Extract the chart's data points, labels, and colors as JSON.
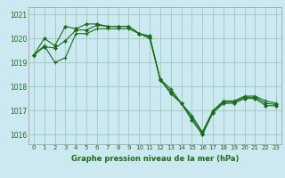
{
  "title": "Graphe pression niveau de la mer (hPa)",
  "bg_color": "#cce8f0",
  "grid_color": "#99ccbb",
  "line_color": "#1a6b1a",
  "x_values": [
    0,
    1,
    2,
    3,
    4,
    5,
    6,
    7,
    8,
    9,
    10,
    11,
    12,
    13,
    14,
    15,
    16,
    17,
    18,
    19,
    20,
    21,
    22,
    23
  ],
  "line1": [
    1019.3,
    1020.0,
    1019.7,
    1020.5,
    1020.4,
    1020.6,
    1020.6,
    1020.5,
    1020.5,
    1020.5,
    1020.2,
    1020.1,
    1018.3,
    1017.7,
    1017.3,
    1016.6,
    1016.0,
    1016.9,
    1017.3,
    1017.3,
    1017.5,
    1017.5,
    1017.2,
    1017.2
  ],
  "line2": [
    1019.3,
    1019.65,
    1019.6,
    1019.9,
    1020.35,
    1020.35,
    1020.55,
    1020.5,
    1020.5,
    1020.5,
    1020.2,
    1020.05,
    1018.25,
    1017.8,
    1017.3,
    1016.7,
    1016.05,
    1016.95,
    1017.35,
    1017.35,
    1017.55,
    1017.55,
    1017.3,
    1017.25
  ],
  "line3": [
    1019.3,
    1019.7,
    1019.0,
    1019.2,
    1020.2,
    1020.2,
    1020.4,
    1020.4,
    1020.4,
    1020.4,
    1020.2,
    1020.0,
    1018.3,
    1017.9,
    1017.3,
    1016.8,
    1016.1,
    1017.0,
    1017.4,
    1017.4,
    1017.6,
    1017.6,
    1017.4,
    1017.3
  ],
  "ylim": [
    1015.6,
    1021.3
  ],
  "yticks": [
    1016,
    1017,
    1018,
    1019,
    1020,
    1021
  ],
  "xlim": [
    -0.5,
    23.5
  ],
  "figsize": [
    3.2,
    2.0
  ],
  "dpi": 100
}
